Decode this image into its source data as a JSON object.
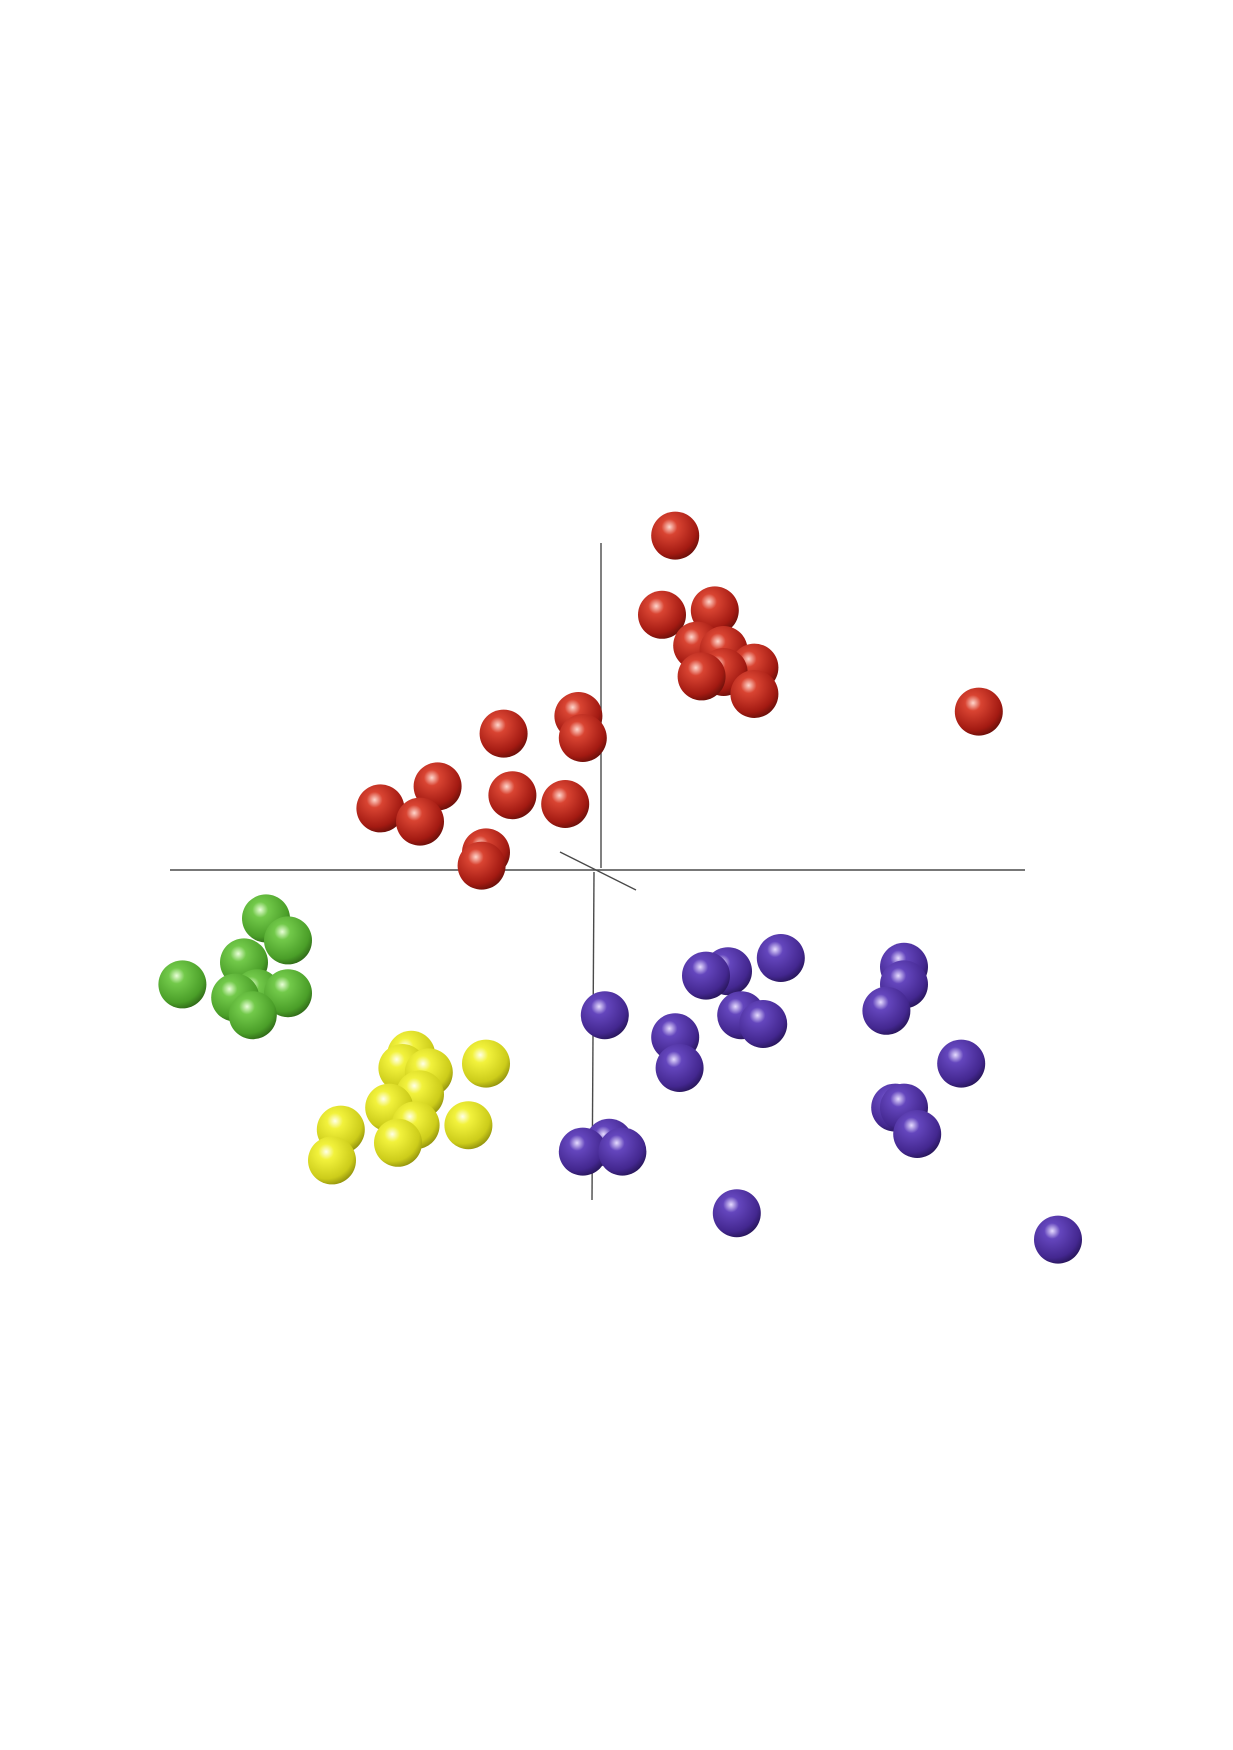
{
  "chart_data": {
    "type": "scatter",
    "dimensions": 3,
    "title": "",
    "xlabel": "",
    "ylabel": "",
    "zlabel": "",
    "xlim": [
      -10,
      10
    ],
    "ylim": [
      -10,
      10
    ],
    "grid": false,
    "legend": "none",
    "axes_lines": true,
    "series": [
      {
        "color": "#b52018",
        "points": [
          [
            1.8,
            7.6
          ],
          [
            1.5,
            5.8
          ],
          [
            2.7,
            5.9
          ],
          [
            2.3,
            5.1
          ],
          [
            2.9,
            5.0
          ],
          [
            3.6,
            4.6
          ],
          [
            3.6,
            4.0
          ],
          [
            2.4,
            4.4
          ],
          [
            2.9,
            4.5
          ],
          [
            8.7,
            3.6
          ],
          [
            -0.4,
            3.5
          ],
          [
            -0.3,
            3.0
          ],
          [
            -2.1,
            3.1
          ],
          [
            -3.6,
            1.9
          ],
          [
            -4.9,
            1.4
          ],
          [
            -4.0,
            1.1
          ],
          [
            -1.9,
            1.7
          ],
          [
            -0.7,
            1.5
          ],
          [
            -2.5,
            0.4
          ],
          [
            -2.6,
            0.1
          ]
        ]
      },
      {
        "color": "#54ad2e",
        "points": [
          [
            -7.5,
            -1.1
          ],
          [
            -7.0,
            -1.6
          ],
          [
            -8.0,
            -2.1
          ],
          [
            -9.4,
            -2.6
          ],
          [
            -8.2,
            -2.9
          ],
          [
            -7.7,
            -2.8
          ],
          [
            -7.0,
            -2.8
          ],
          [
            -7.8,
            -3.3
          ]
        ]
      },
      {
        "color": "#dfdf26",
        "points": [
          [
            -4.2,
            -4.2
          ],
          [
            -4.4,
            -4.5
          ],
          [
            -3.8,
            -4.6
          ],
          [
            -2.5,
            -4.4
          ],
          [
            -4.0,
            -5.1
          ],
          [
            -4.7,
            -5.4
          ],
          [
            -5.8,
            -5.9
          ],
          [
            -4.1,
            -5.8
          ],
          [
            -2.9,
            -5.8
          ],
          [
            -4.5,
            -6.2
          ],
          [
            -6.0,
            -6.6
          ]
        ]
      },
      {
        "color": "#4b2f9e",
        "points": [
          [
            4.2,
            -2.0
          ],
          [
            2.5,
            -2.4
          ],
          [
            3.0,
            -2.3
          ],
          [
            7.0,
            -2.2
          ],
          [
            7.0,
            -2.6
          ],
          [
            0.2,
            -3.3
          ],
          [
            3.3,
            -3.3
          ],
          [
            3.8,
            -3.5
          ],
          [
            6.6,
            -3.2
          ],
          [
            8.3,
            -4.4
          ],
          [
            1.8,
            -3.8
          ],
          [
            1.9,
            -4.5
          ],
          [
            6.8,
            -5.4
          ],
          [
            7.0,
            -5.4
          ],
          [
            7.3,
            -6.0
          ],
          [
            -0.3,
            -6.4
          ],
          [
            0.3,
            -6.2
          ],
          [
            0.6,
            -6.4
          ],
          [
            3.2,
            -7.8
          ],
          [
            10.5,
            -8.4
          ]
        ]
      }
    ]
  }
}
